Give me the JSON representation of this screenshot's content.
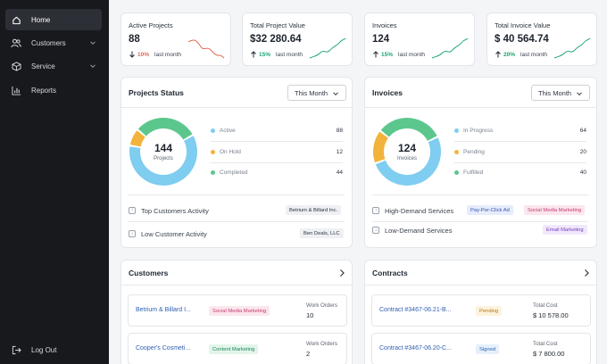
{
  "sidebar": {
    "items": [
      {
        "label": "Home",
        "icon": "home-icon",
        "active": true
      },
      {
        "label": "Customers",
        "icon": "users-icon",
        "has_submenu": true
      },
      {
        "label": "Service",
        "icon": "box-icon",
        "has_submenu": true
      },
      {
        "label": "Reports",
        "icon": "bar-chart-icon"
      }
    ],
    "logout_label": "Log Out"
  },
  "stats": [
    {
      "title": "Active Projects",
      "value": "88",
      "delta": "10%",
      "direction": "down",
      "period": "last month",
      "color": "#e06a55"
    },
    {
      "title": "Total Project Value",
      "value": "$32 280.64",
      "delta": "15%",
      "direction": "up",
      "period": "last month",
      "color": "#18a572"
    },
    {
      "title": "Invoices",
      "value": "124",
      "delta": "15%",
      "direction": "up",
      "period": "last month",
      "color": "#18a572"
    },
    {
      "title": "Total Invoice Value",
      "value": "$ 40 564.74",
      "delta": "20%",
      "direction": "up",
      "period": "last month",
      "color": "#18a572"
    }
  ],
  "projects_status": {
    "title": "Projects Status",
    "filter": "This Month",
    "total": "144",
    "total_label": "Projects",
    "legend": [
      {
        "label": "Active",
        "value": 88,
        "color": "#7fcdf0"
      },
      {
        "label": "On Hold",
        "value": 12,
        "color": "#f2b33d"
      },
      {
        "label": "Completed",
        "value": 44,
        "color": "#5cc78d"
      }
    ],
    "activities": [
      {
        "label": "Top Customers Activity",
        "tags": [
          {
            "text": "Betrium & Billard Inc.",
            "style": "gray"
          }
        ]
      },
      {
        "label": "Low Customer Activity",
        "tags": [
          {
            "text": "Ben Deals, LLC",
            "style": "gray"
          }
        ]
      }
    ]
  },
  "invoices": {
    "title": "Invoices",
    "filter": "This Month",
    "total": "124",
    "total_label": "Invoices",
    "legend": [
      {
        "label": "In Progress",
        "value": 64,
        "color": "#7fcdf0"
      },
      {
        "label": "Pending",
        "value": 20,
        "color": "#f2b33d"
      },
      {
        "label": "Fulfilled",
        "value": 40,
        "color": "#5cc78d"
      }
    ],
    "services": [
      {
        "label": "High-Demand Services",
        "tags": [
          {
            "text": "Pay-Per-Click Ad",
            "style": "blue"
          },
          {
            "text": "Social Media Marketing",
            "style": "pink"
          }
        ]
      },
      {
        "label": "Low-Demand Services",
        "tags": [
          {
            "text": "Email Marketing",
            "style": "purple"
          }
        ]
      }
    ]
  },
  "customers": {
    "title": "Customers",
    "rows": [
      {
        "name": "Betrium & Billard I...",
        "tag": "Social Media Marketing",
        "tag_style": "pink",
        "meta_label": "Work Orders",
        "meta_value": "10"
      },
      {
        "name": "Cooper's Cosmeti...",
        "tag": "Content Marketing",
        "tag_style": "green",
        "meta_label": "Work Orders",
        "meta_value": "2"
      }
    ]
  },
  "contracts": {
    "title": "Contracts",
    "rows": [
      {
        "name": "Contract #3467-06.21-B...",
        "tag": "Pending",
        "tag_style": "yellow",
        "meta_label": "Total Cost",
        "meta_value": "$ 10 578.00"
      },
      {
        "name": "Contract #3467-06.20-C...",
        "tag": "Signed",
        "tag_style": "lblue",
        "meta_label": "Total Cost",
        "meta_value": "$ 7 800.00"
      }
    ]
  }
}
